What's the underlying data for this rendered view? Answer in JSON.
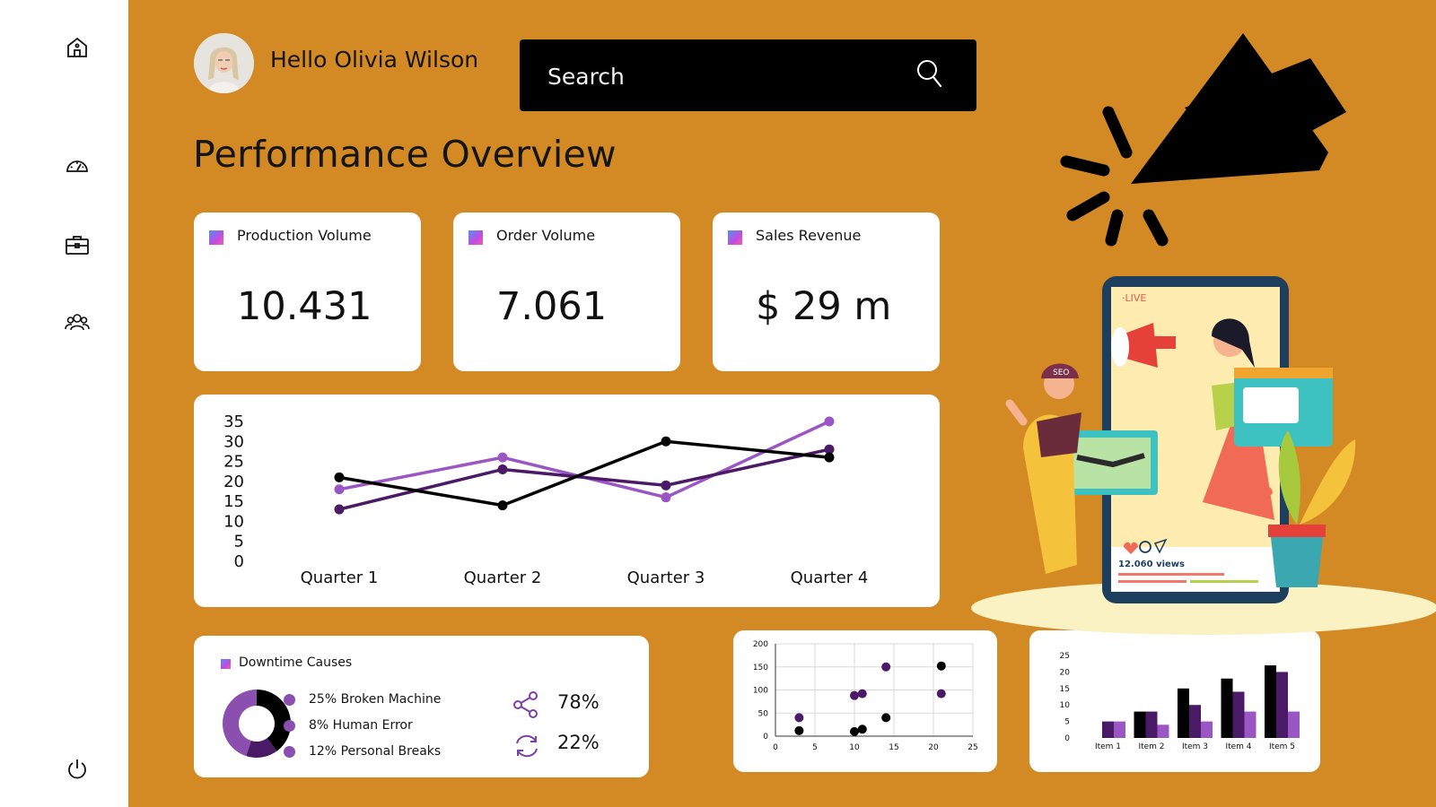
{
  "sidebar": {
    "icons": [
      "home-icon",
      "gauge-icon",
      "briefcase-icon",
      "team-icon",
      "power-icon"
    ]
  },
  "header": {
    "greeting": "Hello Olivia Wilson",
    "search_placeholder": "Search"
  },
  "page_title": "Performance Overview",
  "kpis": [
    {
      "label": "Production Volume",
      "value": "10.431"
    },
    {
      "label": "Order Volume",
      "value": "7.061"
    },
    {
      "label": "Sales Revenue",
      "value": "$ 29 m"
    }
  ],
  "downtime": {
    "title": "Downtime Causes",
    "legend": [
      "25% Broken Machine",
      "8% Human Error",
      "12% Personal Breaks"
    ],
    "stats": [
      {
        "icon": "share-icon",
        "value": "78%"
      },
      {
        "icon": "refresh-icon",
        "value": "22%"
      }
    ]
  },
  "illustration": {
    "live_label": "·LIVE",
    "views": "12.060 views",
    "cap_text": "SEO"
  },
  "colors": {
    "background": "#d38a25",
    "purple_light": "#9a57c4",
    "purple_dark": "#4a1a66",
    "black": "#000000"
  },
  "chart_data": [
    {
      "type": "line",
      "categories": [
        "Quarter 1",
        "Quarter 2",
        "Quarter 3",
        "Quarter 4"
      ],
      "series": [
        {
          "color": "#9a57c4",
          "values": [
            18,
            26,
            16,
            35
          ]
        },
        {
          "color": "#4a1a66",
          "values": [
            13,
            23,
            19,
            28
          ]
        },
        {
          "color": "#000000",
          "values": [
            21,
            14,
            30,
            26
          ]
        }
      ],
      "yticks": [
        0,
        5,
        10,
        15,
        20,
        25,
        30,
        35
      ],
      "ylim": [
        0,
        35
      ]
    },
    {
      "type": "pie",
      "series": [
        {
          "color": "#000000",
          "value": 40
        },
        {
          "color": "#4a1a66",
          "value": 15
        },
        {
          "color": "#8b4fb0",
          "value": 45
        }
      ]
    },
    {
      "type": "scatter",
      "series": [
        {
          "color": "#000000",
          "points": [
            [
              3,
              12
            ],
            [
              10,
              10
            ],
            [
              11,
              15
            ],
            [
              14,
              40
            ],
            [
              21,
              152
            ]
          ]
        },
        {
          "color": "#4a1a66",
          "points": [
            [
              3,
              40
            ],
            [
              10,
              88
            ],
            [
              11,
              92
            ],
            [
              14,
              150
            ],
            [
              21,
              92
            ]
          ]
        }
      ],
      "xlim": [
        0,
        25
      ],
      "ylim": [
        0,
        200
      ],
      "xticks": [
        0,
        5,
        10,
        15,
        20,
        25
      ],
      "yticks": [
        0,
        50,
        100,
        150,
        200
      ],
      "grid": true
    },
    {
      "type": "bar",
      "categories": [
        "Item 1",
        "Item 2",
        "Item 3",
        "Item 4",
        "Item 5"
      ],
      "series": [
        {
          "color": "#000000",
          "values": [
            0,
            8,
            15,
            18,
            22
          ]
        },
        {
          "color": "#4a1a66",
          "values": [
            5,
            8,
            10,
            14,
            20
          ]
        },
        {
          "color": "#9a57c4",
          "values": [
            5,
            4,
            5,
            8,
            8
          ]
        }
      ],
      "ylim": [
        0,
        25
      ],
      "yticks": [
        0,
        5,
        10,
        15,
        20,
        25
      ]
    }
  ]
}
